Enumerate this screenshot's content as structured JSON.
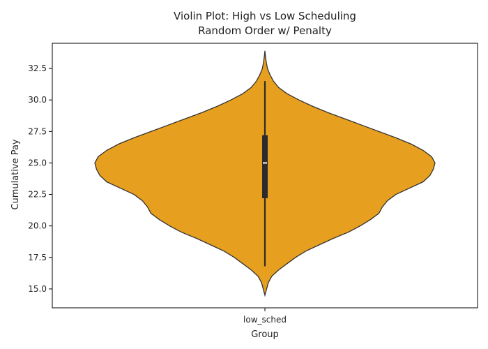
{
  "chart_data": {
    "type": "violin",
    "title": "Violin Plot: High vs Low Scheduling",
    "subtitle": "Random Order w/ Penalty",
    "xlabel": "Group",
    "ylabel": "Cumulative Pay",
    "ylim": [
      13.5,
      34.5
    ],
    "yticks": [
      15.0,
      17.5,
      20.0,
      22.5,
      25.0,
      27.5,
      30.0,
      32.5
    ],
    "ytick_labels": [
      "15.0",
      "17.5",
      "20.0",
      "22.5",
      "25.0",
      "27.5",
      "30.0",
      "32.5"
    ],
    "categories": [
      "low_sched"
    ],
    "fill_color": "#e69f1e",
    "grid": false,
    "violins": [
      {
        "category": "low_sched",
        "median": 25.0,
        "q1": 22.2,
        "q3": 27.2,
        "whisker_low": 16.8,
        "whisker_high": 31.5,
        "kde_min": 14.5,
        "kde_max": 33.9,
        "density": [
          [
            14.5,
            0.0
          ],
          [
            15.0,
            0.01
          ],
          [
            15.5,
            0.02
          ],
          [
            16.0,
            0.04
          ],
          [
            16.5,
            0.08
          ],
          [
            17.0,
            0.13
          ],
          [
            17.5,
            0.18
          ],
          [
            18.0,
            0.24
          ],
          [
            18.5,
            0.32
          ],
          [
            19.0,
            0.4
          ],
          [
            19.5,
            0.49
          ],
          [
            20.0,
            0.56
          ],
          [
            20.5,
            0.62
          ],
          [
            21.0,
            0.67
          ],
          [
            21.5,
            0.69
          ],
          [
            22.0,
            0.72
          ],
          [
            22.5,
            0.77
          ],
          [
            23.0,
            0.85
          ],
          [
            23.5,
            0.93
          ],
          [
            24.0,
            0.97
          ],
          [
            24.5,
            0.99
          ],
          [
            25.0,
            1.0
          ],
          [
            25.5,
            0.98
          ],
          [
            26.0,
            0.93
          ],
          [
            26.5,
            0.86
          ],
          [
            27.0,
            0.77
          ],
          [
            27.5,
            0.67
          ],
          [
            28.0,
            0.57
          ],
          [
            28.5,
            0.47
          ],
          [
            29.0,
            0.37
          ],
          [
            29.5,
            0.28
          ],
          [
            30.0,
            0.2
          ],
          [
            30.5,
            0.13
          ],
          [
            31.0,
            0.08
          ],
          [
            31.5,
            0.05
          ],
          [
            32.0,
            0.03
          ],
          [
            32.5,
            0.015
          ],
          [
            33.0,
            0.008
          ],
          [
            33.5,
            0.003
          ],
          [
            33.9,
            0.0
          ]
        ]
      }
    ]
  }
}
